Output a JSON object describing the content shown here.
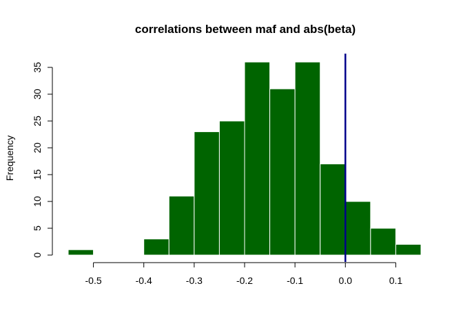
{
  "chart_data": {
    "type": "bar",
    "title": "correlations between maf and abs(beta)",
    "xlabel": "",
    "ylabel": "Frequency",
    "bin_edges": [
      -0.55,
      -0.5,
      -0.45,
      -0.4,
      -0.35,
      -0.3,
      -0.25,
      -0.2,
      -0.15,
      -0.1,
      -0.05,
      0.0,
      0.05,
      0.1,
      0.15
    ],
    "values": [
      1,
      0,
      0,
      3,
      11,
      23,
      25,
      36,
      31,
      36,
      17,
      10,
      5,
      2
    ],
    "xlim": [
      -0.55,
      0.15
    ],
    "ylim": [
      0,
      35
    ],
    "x_ticks": [
      -0.5,
      -0.4,
      -0.3,
      -0.2,
      -0.1,
      0.0,
      0.1
    ],
    "x_tick_labels": [
      "-0.5",
      "-0.4",
      "-0.3",
      "-0.2",
      "-0.1",
      "0.0",
      "0.1"
    ],
    "y_ticks": [
      0,
      5,
      10,
      15,
      20,
      25,
      30,
      35
    ],
    "y_tick_labels": [
      "0",
      "5",
      "10",
      "15",
      "20",
      "25",
      "30",
      "35"
    ],
    "reference_line_x": 0.0,
    "bar_color": "#006400",
    "bar_edge_color": "#ffffff",
    "reference_line_color": "#00008b",
    "grid": false,
    "legend": "none"
  }
}
